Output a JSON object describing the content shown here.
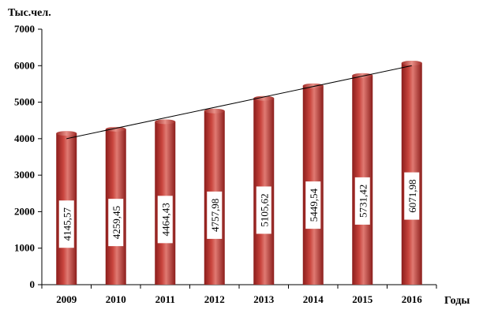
{
  "chart_data": {
    "type": "bar",
    "title": "",
    "ylabel": "Тыс.чел.",
    "xlabel": "Годы",
    "categories": [
      "2009",
      "2010",
      "2011",
      "2012",
      "2013",
      "2014",
      "2015",
      "2016"
    ],
    "values": [
      4145.57,
      4259.45,
      4464.43,
      4757.98,
      5105.62,
      5449.54,
      5731.42,
      6071.98
    ],
    "data_labels": [
      "4145,57",
      "4259,45",
      "4464,43",
      "4757,98",
      "5105,62",
      "5449,54",
      "5731,42",
      "6071,98"
    ],
    "ylim": [
      0,
      7000
    ],
    "yticks": [
      "0",
      "1000",
      "2000",
      "3000",
      "4000",
      "5000",
      "6000",
      "7000"
    ],
    "trendline": {
      "from": 4000,
      "to": 6000
    },
    "grid": false,
    "legend": "none",
    "colors": {
      "bar_dark": "#8b1d1b",
      "bar_mid": "#c9453e",
      "bar_light": "#e07a72",
      "trend_line": "#000000"
    }
  }
}
